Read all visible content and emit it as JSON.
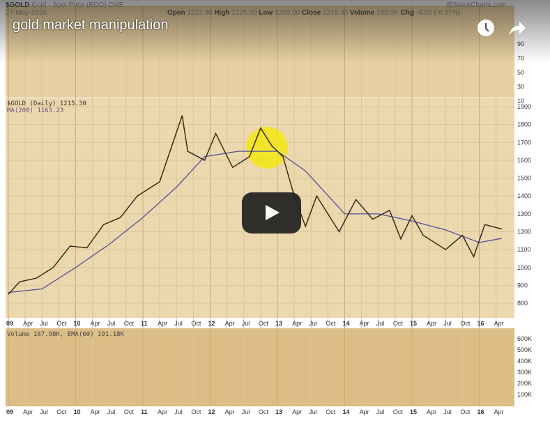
{
  "video": {
    "title": "gold market manipulation",
    "watch_later_icon": "clock-icon",
    "share_icon": "share-icon",
    "play_icon": "play-icon"
  },
  "chart_header": {
    "symbol": "$GOLD",
    "description": "Gold - Spot Price (EOD) CME",
    "date": "27-May-2016",
    "watermark": "@StockCharts.com",
    "open_label": "Open",
    "open": "1222.30",
    "high_label": "High",
    "high": "1225.60",
    "low_label": "Low",
    "low": "1209.00",
    "close_label": "Close",
    "close": "1215.30",
    "volume_label": "Volume",
    "volume": "188.0K",
    "chg_label": "Chg",
    "chg": "-4.50 (-0.37%)"
  },
  "colors": {
    "panel": "#e9d3a6",
    "price": "#3a2a1a",
    "ma": "#5a5a9a",
    "highlight": "#f5e800",
    "play": "#212121"
  },
  "chart_data": [
    {
      "type": "line",
      "panel": "indicator",
      "yticks": [
        90,
        70,
        50,
        30,
        10
      ]
    },
    {
      "type": "line",
      "panel": "price",
      "legend": [
        "$GOLD (Daily) 1215.30",
        "MA(200) 1163.23"
      ],
      "yticks": [
        1900,
        1800,
        1700,
        1600,
        1500,
        1400,
        1300,
        1200,
        1100,
        1000,
        900,
        800
      ],
      "ylim": [
        750,
        1950
      ],
      "xticks": [
        "09",
        "Apr",
        "Jul",
        "Oct",
        "10",
        "Apr",
        "Jul",
        "Oct",
        "11",
        "Apr",
        "Jul",
        "Oct",
        "12",
        "Apr",
        "Jul",
        "Oct",
        "13",
        "Apr",
        "Jul",
        "Oct",
        "14",
        "Apr",
        "Jul",
        "Oct",
        "15",
        "Apr",
        "Jul",
        "Oct",
        "16",
        "Apr"
      ],
      "series": [
        {
          "name": "$GOLD",
          "x": [
            "2009-01",
            "2009-03",
            "2009-06",
            "2009-09",
            "2009-12",
            "2010-03",
            "2010-06",
            "2010-09",
            "2010-12",
            "2011-04",
            "2011-08",
            "2011-09",
            "2011-12",
            "2012-02",
            "2012-05",
            "2012-08",
            "2012-10",
            "2012-12",
            "2013-02",
            "2013-04",
            "2013-06",
            "2013-08",
            "2013-12",
            "2014-03",
            "2014-06",
            "2014-09",
            "2014-11",
            "2015-01",
            "2015-03",
            "2015-07",
            "2015-10",
            "2015-12",
            "2016-02",
            "2016-05"
          ],
          "y": [
            850,
            920,
            940,
            1000,
            1120,
            1110,
            1240,
            1280,
            1400,
            1480,
            1850,
            1650,
            1600,
            1750,
            1560,
            1620,
            1780,
            1680,
            1620,
            1400,
            1230,
            1400,
            1200,
            1380,
            1270,
            1320,
            1160,
            1290,
            1180,
            1100,
            1180,
            1060,
            1240,
            1215
          ]
        },
        {
          "name": "MA(200)",
          "x": [
            "2009-01",
            "2009-07",
            "2010-01",
            "2010-07",
            "2011-01",
            "2011-07",
            "2011-12",
            "2012-06",
            "2013-01",
            "2013-06",
            "2014-01",
            "2014-07",
            "2015-01",
            "2015-07",
            "2016-01",
            "2016-05"
          ],
          "y": [
            860,
            880,
            1000,
            1130,
            1280,
            1450,
            1620,
            1650,
            1650,
            1540,
            1300,
            1300,
            1260,
            1210,
            1140,
            1163
          ]
        }
      ]
    },
    {
      "type": "bar",
      "panel": "volume",
      "legend": "Volume 187.98K, EMA(60) 191.18K",
      "yticks": [
        "600K",
        "500K",
        "400K",
        "300K",
        "200K",
        "100K"
      ]
    }
  ]
}
